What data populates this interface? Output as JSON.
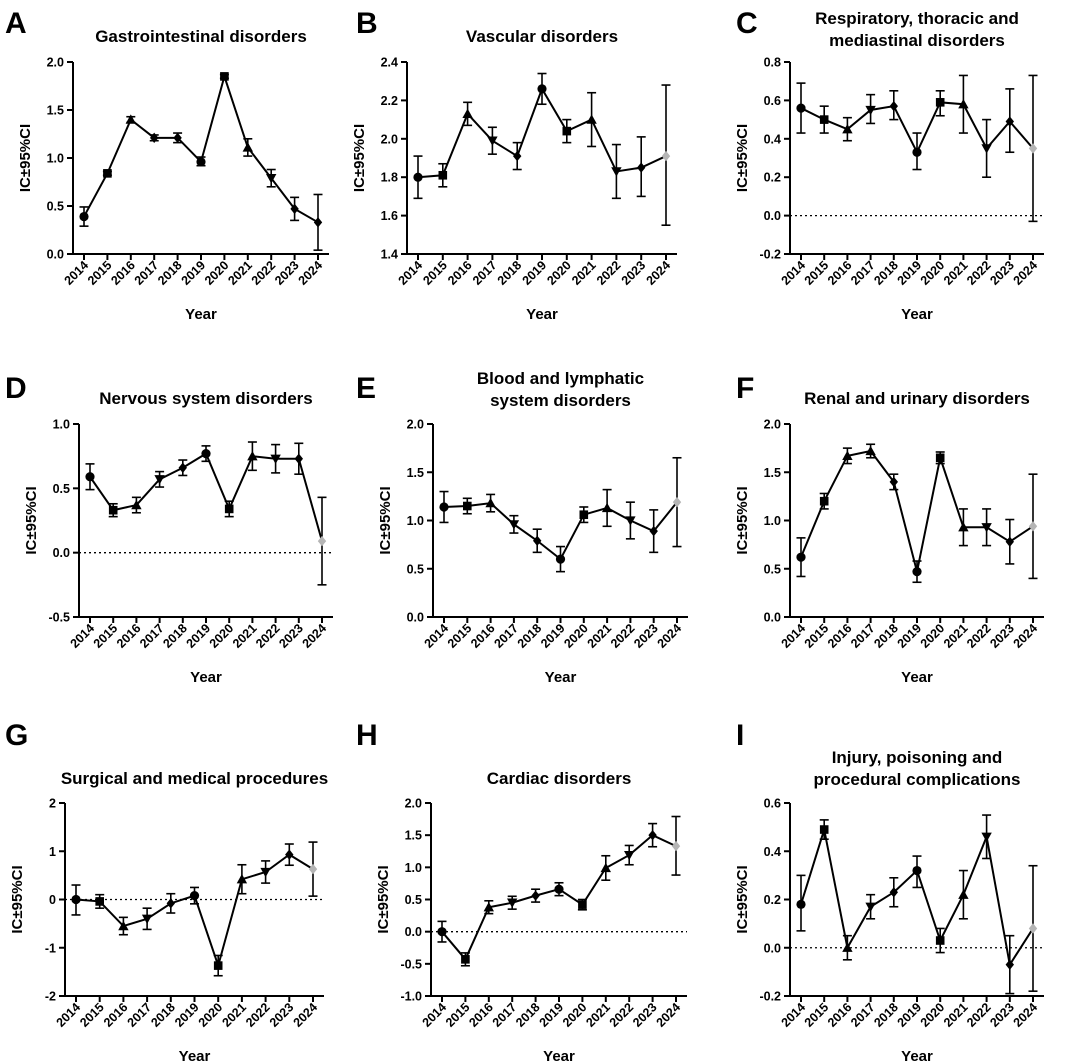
{
  "figure": {
    "ci_label": "IC±95%CI",
    "x_label": "Year"
  },
  "chart_data": [
    {
      "panel": "A",
      "type": "line",
      "title": [
        "Gastrointestinal disorders"
      ],
      "xlabel": "Year",
      "ylabel": "IC±95%CI",
      "ylim": [
        0.0,
        2.0
      ],
      "yticks": [
        0.0,
        0.5,
        1.0,
        1.5,
        2.0
      ],
      "tick_decimals": 1,
      "zero_line": false,
      "x": [
        "2014",
        "2015",
        "2016",
        "2017",
        "2018",
        "2019",
        "2020",
        "2021",
        "2022",
        "2023",
        "2024"
      ],
      "values": [
        0.39,
        0.84,
        1.4,
        1.21,
        1.21,
        0.96,
        1.85,
        1.11,
        0.79,
        0.47,
        0.33
      ],
      "ci_low": [
        0.29,
        0.82,
        1.37,
        1.18,
        1.16,
        0.92,
        1.83,
        1.02,
        0.7,
        0.35,
        0.04
      ],
      "ci_high": [
        0.49,
        0.86,
        1.43,
        1.24,
        1.26,
        1.01,
        1.87,
        1.2,
        0.88,
        0.59,
        0.62
      ],
      "markers": [
        "circle",
        "square",
        "up-triangle",
        "diamond",
        "diamond",
        "circle",
        "square",
        "up-triangle",
        "down-triangle",
        "diamond",
        "diamond"
      ],
      "last_point_grey": false
    },
    {
      "panel": "B",
      "type": "line",
      "title": [
        "Vascular disorders"
      ],
      "xlabel": "Year",
      "ylabel": "IC±95%CI",
      "ylim": [
        1.4,
        2.4
      ],
      "yticks": [
        1.4,
        1.6,
        1.8,
        2.0,
        2.2,
        2.4
      ],
      "tick_decimals": 1,
      "zero_line": false,
      "x": [
        "2014",
        "2015",
        "2016",
        "2017",
        "2018",
        "2019",
        "2020",
        "2021",
        "2022",
        "2023",
        "2024"
      ],
      "values": [
        1.8,
        1.81,
        2.13,
        1.99,
        1.91,
        2.26,
        2.04,
        2.1,
        1.83,
        1.85,
        1.91
      ],
      "ci_low": [
        1.69,
        1.75,
        2.07,
        1.92,
        1.84,
        2.18,
        1.98,
        1.96,
        1.69,
        1.7,
        1.55
      ],
      "ci_high": [
        1.91,
        1.87,
        2.19,
        2.06,
        1.98,
        2.34,
        2.1,
        2.24,
        1.97,
        2.01,
        2.28
      ],
      "markers": [
        "circle",
        "square",
        "up-triangle",
        "down-triangle",
        "diamond",
        "circle",
        "square",
        "up-triangle",
        "down-triangle",
        "diamond",
        "diamond"
      ],
      "last_point_grey": true
    },
    {
      "panel": "C",
      "type": "line",
      "title": [
        "Respiratory, thoracic and",
        "mediastinal disorders"
      ],
      "xlabel": "Year",
      "ylabel": "IC±95%CI",
      "ylim": [
        -0.2,
        0.8
      ],
      "yticks": [
        -0.2,
        0.0,
        0.2,
        0.4,
        0.6,
        0.8
      ],
      "tick_decimals": 1,
      "zero_line": true,
      "x": [
        "2014",
        "2015",
        "2016",
        "2017",
        "2018",
        "2019",
        "2020",
        "2021",
        "2022",
        "2023",
        "2024"
      ],
      "values": [
        0.56,
        0.5,
        0.45,
        0.55,
        0.57,
        0.33,
        0.59,
        0.58,
        0.35,
        0.49,
        0.35
      ],
      "ci_low": [
        0.43,
        0.43,
        0.39,
        0.48,
        0.5,
        0.24,
        0.52,
        0.43,
        0.2,
        0.33,
        -0.03
      ],
      "ci_high": [
        0.69,
        0.57,
        0.51,
        0.63,
        0.65,
        0.43,
        0.65,
        0.73,
        0.5,
        0.66,
        0.73
      ],
      "markers": [
        "circle",
        "square",
        "up-triangle",
        "down-triangle",
        "diamond",
        "circle",
        "square",
        "up-triangle",
        "down-triangle",
        "diamond",
        "diamond"
      ],
      "last_point_grey": true
    },
    {
      "panel": "D",
      "type": "line",
      "title": [
        "Nervous system disorders"
      ],
      "xlabel": "Year",
      "ylabel": "IC±95%CI",
      "ylim": [
        -0.5,
        1.0
      ],
      "yticks": [
        -0.5,
        0.0,
        0.5,
        1.0
      ],
      "tick_decimals": 1,
      "zero_line": true,
      "x": [
        "2014",
        "2015",
        "2016",
        "2017",
        "2018",
        "2019",
        "2020",
        "2021",
        "2022",
        "2023",
        "2024"
      ],
      "values": [
        0.59,
        0.33,
        0.37,
        0.57,
        0.66,
        0.77,
        0.34,
        0.75,
        0.73,
        0.73,
        0.09
      ],
      "ci_low": [
        0.49,
        0.28,
        0.31,
        0.51,
        0.6,
        0.71,
        0.28,
        0.64,
        0.62,
        0.61,
        -0.25
      ],
      "ci_high": [
        0.69,
        0.38,
        0.43,
        0.63,
        0.72,
        0.83,
        0.4,
        0.86,
        0.84,
        0.85,
        0.43
      ],
      "markers": [
        "circle",
        "square",
        "up-triangle",
        "down-triangle",
        "diamond",
        "circle",
        "square",
        "up-triangle",
        "down-triangle",
        "diamond",
        "diamond"
      ],
      "last_point_grey": true
    },
    {
      "panel": "E",
      "type": "line",
      "title": [
        "Blood and lymphatic",
        "system disorders"
      ],
      "xlabel": "Year",
      "ylabel": "IC±95%CI",
      "ylim": [
        0.0,
        2.0
      ],
      "yticks": [
        0.0,
        0.5,
        1.0,
        1.5,
        2.0
      ],
      "tick_decimals": 1,
      "zero_line": false,
      "x": [
        "2014",
        "2015",
        "2016",
        "2017",
        "2018",
        "2019",
        "2020",
        "2021",
        "2022",
        "2023",
        "2024"
      ],
      "values": [
        1.14,
        1.15,
        1.18,
        0.96,
        0.79,
        0.6,
        1.06,
        1.13,
        1.0,
        0.89,
        1.19
      ],
      "ci_low": [
        0.98,
        1.07,
        1.09,
        0.87,
        0.67,
        0.47,
        0.98,
        0.94,
        0.81,
        0.67,
        0.73
      ],
      "ci_high": [
        1.3,
        1.23,
        1.27,
        1.05,
        0.91,
        0.73,
        1.14,
        1.32,
        1.19,
        1.11,
        1.65
      ],
      "markers": [
        "circle",
        "square",
        "up-triangle",
        "down-triangle",
        "diamond",
        "circle",
        "square",
        "up-triangle",
        "down-triangle",
        "diamond",
        "diamond"
      ],
      "last_point_grey": true
    },
    {
      "panel": "F",
      "type": "line",
      "title": [
        "Renal and urinary disorders"
      ],
      "xlabel": "Year",
      "ylabel": "IC±95%CI",
      "ylim": [
        0.0,
        2.0
      ],
      "yticks": [
        0.0,
        0.5,
        1.0,
        1.5,
        2.0
      ],
      "tick_decimals": 1,
      "zero_line": false,
      "x": [
        "2014",
        "2015",
        "2016",
        "2017",
        "2018",
        "2019",
        "2020",
        "2021",
        "2022",
        "2023",
        "2024"
      ],
      "values": [
        0.62,
        1.2,
        1.67,
        1.72,
        1.4,
        0.47,
        1.65,
        0.93,
        0.93,
        0.78,
        0.94
      ],
      "ci_low": [
        0.42,
        1.12,
        1.59,
        1.65,
        1.32,
        0.36,
        1.59,
        0.74,
        0.74,
        0.55,
        0.4
      ],
      "ci_high": [
        0.82,
        1.28,
        1.75,
        1.79,
        1.48,
        0.58,
        1.71,
        1.12,
        1.12,
        1.01,
        1.48
      ],
      "markers": [
        "circle",
        "square",
        "up-triangle",
        "up-triangle",
        "diamond",
        "circle",
        "square",
        "up-triangle",
        "down-triangle",
        "diamond",
        "diamond"
      ],
      "last_point_grey": true
    },
    {
      "panel": "G",
      "type": "line",
      "title": [
        "Surgical and medical procedures"
      ],
      "xlabel": "Year",
      "ylabel": "IC±95%CI",
      "ylim": [
        -2,
        2
      ],
      "yticks": [
        -2,
        -1,
        0,
        1,
        2
      ],
      "tick_decimals": 0,
      "zero_line": true,
      "x": [
        "2014",
        "2015",
        "2016",
        "2017",
        "2018",
        "2019",
        "2020",
        "2021",
        "2022",
        "2023",
        "2024"
      ],
      "values": [
        0.0,
        -0.04,
        -0.55,
        -0.4,
        -0.08,
        0.08,
        -1.37,
        0.42,
        0.57,
        0.93,
        0.63
      ],
      "ci_low": [
        -0.32,
        -0.18,
        -0.73,
        -0.62,
        -0.28,
        -0.09,
        -1.58,
        0.12,
        0.34,
        0.71,
        0.07
      ],
      "ci_high": [
        0.3,
        0.1,
        -0.37,
        -0.18,
        0.12,
        0.25,
        -1.16,
        0.72,
        0.8,
        1.15,
        1.19
      ],
      "markers": [
        "circle",
        "square",
        "up-triangle",
        "down-triangle",
        "diamond",
        "circle",
        "square",
        "up-triangle",
        "down-triangle",
        "diamond",
        "diamond"
      ],
      "last_point_grey": true
    },
    {
      "panel": "H",
      "type": "line",
      "title": [
        "Cardiac disorders"
      ],
      "xlabel": "Year",
      "ylabel": "IC±95%CI",
      "ylim": [
        -1.0,
        2.0
      ],
      "yticks": [
        -1.0,
        -0.5,
        0.0,
        0.5,
        1.0,
        1.5,
        2.0
      ],
      "tick_decimals": 1,
      "zero_line": true,
      "x": [
        "2014",
        "2015",
        "2016",
        "2017",
        "2018",
        "2019",
        "2020",
        "2021",
        "2022",
        "2023",
        "2024"
      ],
      "values": [
        0.0,
        -0.43,
        0.38,
        0.45,
        0.56,
        0.66,
        0.42,
        0.99,
        1.19,
        1.5,
        1.33
      ],
      "ci_low": [
        -0.16,
        -0.53,
        0.28,
        0.35,
        0.46,
        0.56,
        0.34,
        0.8,
        1.04,
        1.32,
        0.88
      ],
      "ci_high": [
        0.16,
        -0.33,
        0.48,
        0.55,
        0.66,
        0.76,
        0.5,
        1.18,
        1.34,
        1.68,
        1.79
      ],
      "markers": [
        "circle",
        "square",
        "up-triangle",
        "down-triangle",
        "diamond",
        "circle",
        "square",
        "up-triangle",
        "down-triangle",
        "diamond",
        "diamond"
      ],
      "last_point_grey": true
    },
    {
      "panel": "I",
      "type": "line",
      "title": [
        "Injury, poisoning and",
        "procedural complications"
      ],
      "xlabel": "Year",
      "ylabel": "IC±95%CI",
      "ylim": [
        -0.2,
        0.6
      ],
      "yticks": [
        -0.2,
        0.0,
        0.2,
        0.4,
        0.6
      ],
      "tick_decimals": 1,
      "zero_line": true,
      "x": [
        "2014",
        "2015",
        "2016",
        "2017",
        "2018",
        "2019",
        "2020",
        "2021",
        "2022",
        "2023",
        "2024"
      ],
      "values": [
        0.18,
        0.49,
        0.0,
        0.17,
        0.23,
        0.32,
        0.03,
        0.22,
        0.46,
        -0.07,
        0.08
      ],
      "ci_low": [
        0.07,
        0.45,
        -0.05,
        0.12,
        0.17,
        0.25,
        -0.02,
        0.12,
        0.37,
        -0.19,
        -0.18
      ],
      "ci_high": [
        0.3,
        0.53,
        0.05,
        0.22,
        0.29,
        0.38,
        0.08,
        0.32,
        0.55,
        0.05,
        0.34
      ],
      "markers": [
        "circle",
        "square",
        "up-triangle",
        "down-triangle",
        "diamond",
        "circle",
        "square",
        "up-triangle",
        "down-triangle",
        "diamond",
        "diamond"
      ],
      "last_point_grey": true
    }
  ]
}
